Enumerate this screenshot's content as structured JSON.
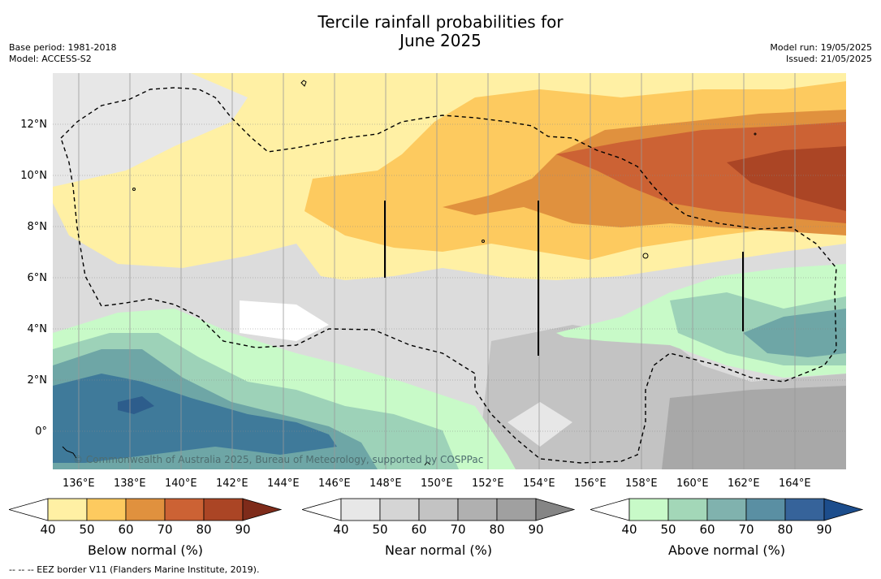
{
  "title_line1": "Tercile rainfall probabilities for",
  "title_line2": "June 2025",
  "base_period": "Base period: 1981-2018",
  "model": "Model: ACCESS-S2",
  "model_run": "Model run: 19/05/2025",
  "issued": "Issued: 21/05/2025",
  "lon_labels": [
    "136°E",
    "138°E",
    "140°E",
    "142°E",
    "144°E",
    "146°E",
    "148°E",
    "150°E",
    "152°E",
    "154°E",
    "156°E",
    "158°E",
    "160°E",
    "162°E",
    "164°E"
  ],
  "lat_labels": [
    "12°N",
    "10°N",
    "8°N",
    "6°N",
    "4°N",
    "2°N",
    "0°"
  ],
  "copyright": "© Commonwealth of Australia 2025, Bureau of Meteorology, supported by COSPPac",
  "footer": "--  --  -- EEZ border V11 (Flanders Marine Institute, 2019).",
  "colorbars": [
    {
      "title": "Below normal (%)",
      "ticks": [
        "40",
        "50",
        "60",
        "70",
        "80",
        "90"
      ],
      "colors": [
        "#ffffff",
        "#fff0a4",
        "#fdca5f",
        "#e0913e",
        "#cc6234",
        "#ab4525",
        "#7e2b1a"
      ]
    },
    {
      "title": "Near normal (%)",
      "ticks": [
        "40",
        "50",
        "60",
        "70",
        "80",
        "90"
      ],
      "colors": [
        "#ffffff",
        "#e7e7e7",
        "#d5d5d5",
        "#c3c3c3",
        "#b0b0b0",
        "#a0a0a0",
        "#858585"
      ]
    },
    {
      "title": "Above normal (%)",
      "ticks": [
        "40",
        "50",
        "60",
        "70",
        "80",
        "90"
      ],
      "colors": [
        "#ffffff",
        "#c8fac8",
        "#a3d7b8",
        "#80b2ae",
        "#5a8fa3",
        "#36639a",
        "#1c4d8c"
      ]
    }
  ],
  "colors": {
    "below_50": "#fff0a4",
    "below_60": "#fdca5f",
    "below_70": "#e0913e",
    "below_80": "#cc6234",
    "below_90": "#ab4525",
    "near_40": "#e7e7e7",
    "near_50": "#d5d5d5",
    "near_60": "#c3c3c3",
    "near_70": "#a8a8a8",
    "above_50": "#c8fac8",
    "above_60": "#9dd2b8",
    "above_70": "#6ea6a6",
    "above_80": "#3f7a9a"
  }
}
